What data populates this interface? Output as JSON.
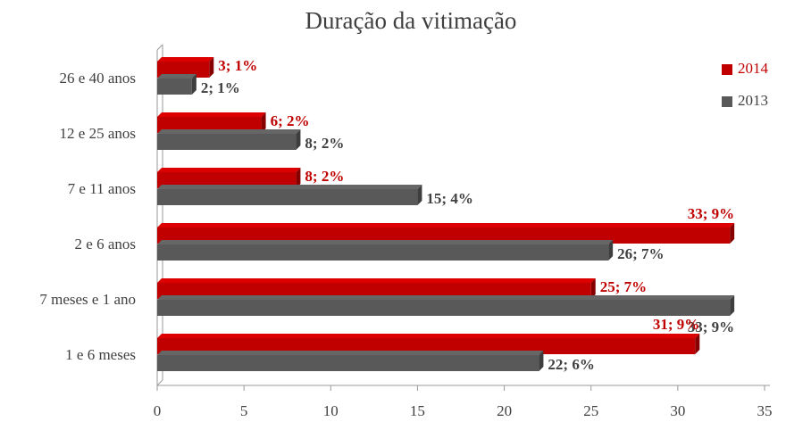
{
  "chart_data": {
    "type": "bar",
    "orientation": "horizontal",
    "title": "Duração da vitimação",
    "categories": [
      "26 e 40 anos",
      "12 e 25 anos",
      "7 e 11 anos",
      "2 e 6 anos",
      "7 meses e 1 ano",
      "1 e 6 meses"
    ],
    "series": [
      {
        "name": "2014",
        "color": "#c00000",
        "values": [
          3,
          6,
          8,
          33,
          25,
          31
        ],
        "value_labels": [
          "3; 1%",
          "6; 2%",
          "8; 2%",
          "33; 9%",
          "25; 7%",
          "31; 9%"
        ]
      },
      {
        "name": "2013",
        "color": "#595959",
        "values": [
          2,
          8,
          15,
          26,
          33,
          22
        ],
        "value_labels": [
          "2; 1%",
          "8; 2%",
          "15; 4%",
          "26; 7%",
          "33; 9%",
          "22; 6%"
        ]
      }
    ],
    "xlim": [
      0,
      35
    ],
    "xticks": [
      0,
      5,
      10,
      15,
      20,
      25,
      30,
      35
    ],
    "legend": "right"
  }
}
